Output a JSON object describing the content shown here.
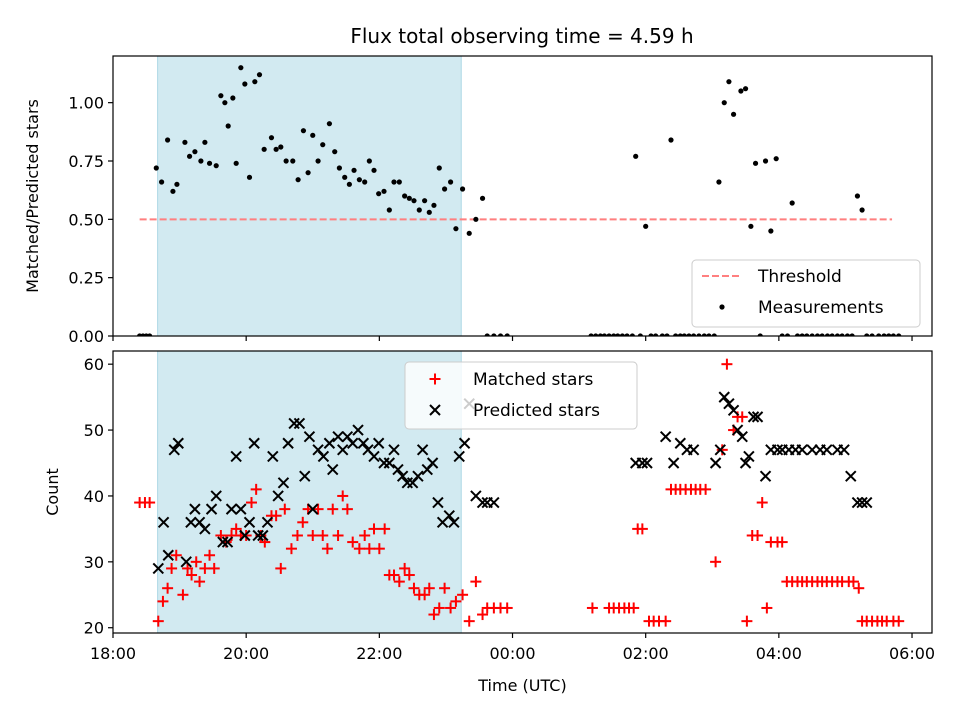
{
  "title": "Flux total observing time = 4.59 h",
  "colors": {
    "shade": "#add8e6",
    "threshold": "#ff7f7f",
    "measurement": "#000000",
    "matched": "#ff0000",
    "predicted": "#000000"
  },
  "chart_data": [
    {
      "type": "scatter",
      "ylabel": "Matched/Predicted stars",
      "xlim": [
        18.0,
        30.3
      ],
      "ylim": [
        0,
        1.2
      ],
      "yticks": [
        0,
        0.25,
        0.5,
        0.75,
        1.0
      ],
      "ytick_labels": [
        "0.00",
        "0.25",
        "0.50",
        "0.75",
        "1.00"
      ],
      "shaded_interval": [
        18.67,
        23.23
      ],
      "threshold": {
        "name": "Threshold",
        "y": 0.5,
        "x_range": [
          18.4,
          29.7
        ]
      },
      "legend": {
        "position": "lower-right",
        "entries": [
          "Threshold",
          "Measurements"
        ]
      },
      "series": [
        {
          "name": "Measurements",
          "x": [
            18.4,
            18.45,
            18.5,
            18.55,
            18.65,
            18.73,
            18.82,
            18.9,
            18.96,
            19.08,
            19.15,
            19.23,
            19.32,
            19.38,
            19.45,
            19.55,
            19.62,
            19.68,
            19.73,
            19.8,
            19.85,
            19.92,
            19.98,
            20.05,
            20.13,
            20.2,
            20.27,
            20.38,
            20.45,
            20.52,
            20.6,
            20.7,
            20.78,
            20.86,
            20.93,
            21.0,
            21.08,
            21.15,
            21.25,
            21.33,
            21.4,
            21.48,
            21.55,
            21.62,
            21.7,
            21.78,
            21.85,
            21.92,
            21.99,
            22.07,
            22.15,
            22.22,
            22.3,
            22.38,
            22.45,
            22.52,
            22.6,
            22.68,
            22.75,
            22.82,
            22.9,
            22.98,
            23.07,
            23.15,
            23.25,
            23.35,
            23.45,
            23.55,
            23.62,
            23.72,
            23.82,
            23.92,
            25.18,
            25.25,
            25.32,
            25.38,
            25.45,
            25.52,
            25.58,
            25.65,
            25.72,
            25.8,
            25.85,
            25.92,
            26.0,
            26.08,
            26.15,
            26.25,
            26.32,
            26.38,
            26.45,
            26.52,
            26.58,
            26.65,
            26.72,
            26.8,
            26.88,
            26.95,
            27.03,
            27.1,
            27.18,
            27.25,
            27.32,
            27.43,
            27.5,
            27.58,
            27.65,
            27.72,
            27.8,
            27.88,
            27.96,
            28.05,
            28.13,
            28.2,
            28.28,
            28.35,
            28.42,
            28.5,
            28.58,
            28.65,
            28.73,
            28.8,
            28.88,
            28.95,
            29.03,
            29.1,
            29.18,
            29.25,
            29.32,
            29.4,
            29.5,
            29.58,
            29.65,
            29.72,
            29.8
          ],
          "y": [
            0.0,
            0.0,
            0.0,
            0.0,
            0.72,
            0.66,
            0.84,
            0.62,
            0.65,
            0.83,
            0.77,
            0.79,
            0.75,
            0.83,
            0.74,
            0.73,
            1.03,
            1.0,
            0.9,
            1.02,
            0.74,
            1.15,
            1.08,
            0.68,
            1.09,
            1.12,
            0.8,
            0.85,
            0.8,
            0.81,
            0.75,
            0.75,
            0.67,
            0.88,
            0.7,
            0.86,
            0.75,
            0.82,
            0.91,
            0.79,
            0.72,
            0.68,
            0.65,
            0.71,
            0.67,
            0.66,
            0.75,
            0.71,
            0.61,
            0.62,
            0.54,
            0.66,
            0.66,
            0.6,
            0.59,
            0.58,
            0.54,
            0.58,
            0.53,
            0.56,
            0.72,
            0.63,
            0.66,
            0.46,
            0.63,
            0.44,
            0.5,
            0.59,
            0.0,
            0.0,
            0.0,
            0.0,
            0.0,
            0.0,
            0.0,
            0.0,
            0.0,
            0.0,
            0.0,
            0.0,
            0.0,
            0.0,
            0.77,
            0.0,
            0.47,
            0.0,
            0.0,
            0.0,
            0.0,
            0.84,
            0.0,
            0.0,
            0.0,
            0.0,
            0.0,
            0.0,
            0.0,
            0.0,
            0.0,
            0.66,
            1.0,
            1.09,
            0.95,
            1.05,
            1.06,
            0.47,
            0.74,
            0.0,
            0.75,
            0.45,
            0.76,
            0.0,
            0.0,
            0.57,
            0.0,
            0.0,
            0.0,
            0.0,
            0.0,
            0.0,
            0.0,
            0.0,
            0.0,
            0.0,
            0.0,
            0.0,
            0.6,
            0.54,
            0.0,
            0.0,
            0.0,
            0.0,
            0.0,
            0.0,
            0.0
          ]
        }
      ]
    },
    {
      "type": "scatter",
      "ylabel": "Count",
      "xlabel": "Time (UTC)",
      "xlim": [
        18.0,
        30.3
      ],
      "ylim": [
        19.2,
        62
      ],
      "xticks": [
        18,
        20,
        22,
        24,
        26,
        28,
        30
      ],
      "xtick_labels": [
        "18:00",
        "20:00",
        "22:00",
        "00:00",
        "02:00",
        "04:00",
        "06:00"
      ],
      "yticks": [
        20,
        30,
        40,
        50,
        60
      ],
      "ytick_labels": [
        "20",
        "30",
        "40",
        "50",
        "60"
      ],
      "shaded_interval": [
        18.67,
        23.23
      ],
      "legend": {
        "position": "upper-center",
        "entries": [
          "Matched stars",
          "Predicted stars"
        ]
      },
      "series": [
        {
          "name": "Matched stars",
          "marker": "plus",
          "x": [
            18.4,
            18.48,
            18.55,
            18.68,
            18.75,
            18.82,
            18.88,
            18.95,
            19.05,
            19.12,
            19.18,
            19.25,
            19.3,
            19.38,
            19.45,
            19.52,
            19.62,
            19.7,
            19.78,
            19.85,
            19.92,
            20.0,
            20.08,
            20.15,
            20.22,
            20.28,
            20.38,
            20.45,
            20.52,
            20.58,
            20.68,
            20.77,
            20.85,
            20.93,
            21.0,
            21.08,
            21.15,
            21.22,
            21.3,
            21.38,
            21.45,
            21.52,
            21.6,
            21.7,
            21.78,
            21.85,
            21.92,
            22.0,
            22.08,
            22.15,
            22.22,
            22.3,
            22.38,
            22.45,
            22.52,
            22.6,
            22.68,
            22.75,
            22.82,
            22.9,
            22.98,
            23.07,
            23.15,
            23.25,
            23.35,
            23.45,
            23.55,
            23.62,
            23.72,
            23.82,
            23.92,
            25.2,
            25.45,
            25.52,
            25.6,
            25.68,
            25.75,
            25.82,
            25.88,
            25.95,
            26.05,
            26.12,
            26.2,
            26.3,
            26.38,
            26.45,
            26.52,
            26.6,
            26.68,
            26.75,
            26.82,
            26.9,
            27.05,
            27.15,
            27.22,
            27.32,
            27.38,
            27.45,
            27.52,
            27.6,
            27.68,
            27.75,
            27.82,
            27.88,
            27.98,
            28.05,
            28.12,
            28.2,
            28.28,
            28.35,
            28.42,
            28.5,
            28.58,
            28.65,
            28.72,
            28.8,
            28.88,
            28.95,
            29.05,
            29.12,
            29.2,
            29.25,
            29.32,
            29.4,
            29.48,
            29.55,
            29.62,
            29.72,
            29.8
          ],
          "y": [
            39,
            39,
            39,
            21,
            24,
            26,
            29,
            31,
            25,
            29,
            28,
            30,
            27,
            29,
            31,
            29,
            34,
            33,
            34,
            35,
            34,
            34,
            39,
            41,
            34,
            33,
            37,
            37,
            29,
            38,
            32,
            34,
            36,
            38,
            34,
            38,
            34,
            32,
            38,
            34,
            40,
            38,
            33,
            32,
            34,
            32,
            35,
            32,
            35,
            28,
            28,
            27,
            29,
            28,
            26,
            25,
            25,
            26,
            22,
            23,
            26,
            23,
            24,
            25,
            21,
            27,
            22,
            23,
            23,
            23,
            23,
            23,
            23,
            23,
            23,
            23,
            23,
            23,
            35,
            35,
            21,
            21,
            21,
            21,
            41,
            41,
            41,
            41,
            41,
            41,
            41,
            41,
            30,
            47,
            60,
            50,
            52,
            52,
            21,
            34,
            34,
            39,
            23,
            33,
            33,
            33,
            27,
            27,
            27,
            27,
            27,
            27,
            27,
            27,
            27,
            27,
            27,
            27,
            27,
            27,
            26,
            21,
            21,
            21,
            21,
            21,
            21,
            21,
            21
          ]
        },
        {
          "name": "Predicted stars",
          "marker": "x",
          "x": [
            18.68,
            18.76,
            18.83,
            18.92,
            18.98,
            19.1,
            19.17,
            19.23,
            19.3,
            19.38,
            19.48,
            19.55,
            19.65,
            19.72,
            19.78,
            19.85,
            19.92,
            19.98,
            20.05,
            20.12,
            20.18,
            20.25,
            20.32,
            20.4,
            20.48,
            20.56,
            20.63,
            20.72,
            20.8,
            20.88,
            20.95,
            21.0,
            21.08,
            21.16,
            21.25,
            21.3,
            21.38,
            21.45,
            21.52,
            21.6,
            21.68,
            21.76,
            21.83,
            21.92,
            21.99,
            22.07,
            22.15,
            22.22,
            22.28,
            22.35,
            22.42,
            22.5,
            22.58,
            22.65,
            22.72,
            22.8,
            22.88,
            22.95,
            23.05,
            23.12,
            23.2,
            23.28,
            23.35,
            23.45,
            23.55,
            23.62,
            23.72,
            25.85,
            25.95,
            26.02,
            26.3,
            26.42,
            26.52,
            26.62,
            26.72,
            27.05,
            27.12,
            27.18,
            27.25,
            27.32,
            27.38,
            27.45,
            27.5,
            27.55,
            27.62,
            27.68,
            27.8,
            27.88,
            27.98,
            28.05,
            28.15,
            28.25,
            28.35,
            28.5,
            28.62,
            28.72,
            28.88,
            28.98,
            29.08,
            29.18,
            29.25,
            29.32
          ],
          "y": [
            29,
            36,
            31,
            47,
            48,
            30,
            36,
            38,
            36,
            35,
            38,
            40,
            33,
            33,
            38,
            46,
            38,
            34,
            36,
            48,
            34,
            34,
            36,
            46,
            40,
            42,
            48,
            51,
            51,
            43,
            49,
            38,
            47,
            46,
            48,
            44,
            49,
            47,
            49,
            48,
            50,
            48,
            47,
            46,
            48,
            45,
            45,
            47,
            44,
            43,
            42,
            42,
            43,
            47,
            44,
            45,
            39,
            36,
            37,
            36,
            46,
            48,
            54,
            40,
            39,
            39,
            39,
            45,
            45,
            45,
            49,
            45,
            48,
            47,
            47,
            45,
            47,
            55,
            54,
            53,
            50,
            49,
            45,
            46,
            52,
            52,
            43,
            47,
            47,
            47,
            47,
            47,
            47,
            47,
            47,
            47,
            47,
            47,
            43,
            39,
            39,
            39
          ]
        }
      ]
    }
  ]
}
